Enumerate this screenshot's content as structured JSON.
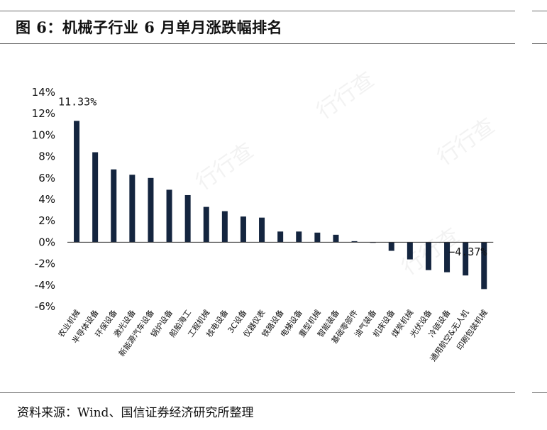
{
  "title": "图 6：机械子行业 6 月单月涨跌幅排名",
  "source": "资料来源：Wind、国信证券经济研究所整理",
  "watermark": "行行查",
  "colors": {
    "bar": "#14253f",
    "rule": "#6b6b6b"
  },
  "chart_data": {
    "type": "bar",
    "categories": [
      "农业机械",
      "半导体设备",
      "环保设备",
      "激光设备",
      "新能源汽车设备",
      "锅炉设备",
      "船舶海工",
      "工程机械",
      "核电设备",
      "3C设备",
      "仪器仪表",
      "铁路设备",
      "电梯设备",
      "重型机械",
      "智能装备",
      "基础零部件",
      "油气装备",
      "机床设备",
      "煤炭机械",
      "光伏设备",
      "冷链设备",
      "通用航空&无人机",
      "印刷包装机械"
    ],
    "values": [
      11.33,
      8.4,
      6.8,
      6.3,
      6.0,
      4.9,
      4.4,
      3.3,
      2.9,
      2.4,
      2.3,
      1.0,
      1.0,
      0.9,
      0.7,
      0.1,
      0.0,
      -0.8,
      -1.6,
      -2.6,
      -2.8,
      -3.1,
      -4.37
    ],
    "ylim": [
      -6,
      14
    ],
    "yticks": [
      -6,
      -4,
      -2,
      0,
      2,
      4,
      6,
      8,
      10,
      12,
      14
    ],
    "ytick_labels": [
      "-6%",
      "-4%",
      "-2%",
      "0%",
      "2%",
      "4%",
      "6%",
      "8%",
      "10%",
      "12%",
      "14%"
    ],
    "annotations": [
      {
        "index": 0,
        "text": "11.33%"
      },
      {
        "index": 22,
        "text": "−4.37%"
      }
    ],
    "grid": false,
    "legend": "none"
  }
}
